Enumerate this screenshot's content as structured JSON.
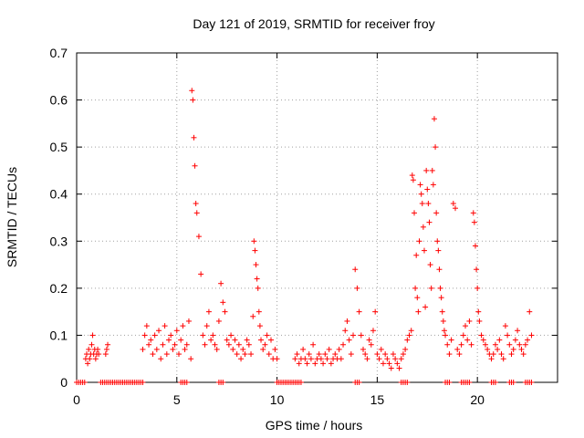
{
  "chart_data": {
    "type": "scatter",
    "title": "Day 121 of 2019, SRMTID for receiver froy",
    "xlabel": "GPS time / hours",
    "ylabel": "SRMTID / TECUs",
    "xlim": [
      0,
      24
    ],
    "ylim": [
      0,
      0.7
    ],
    "xticks": [
      0,
      5,
      10,
      15,
      20
    ],
    "yticks": [
      0,
      0.1,
      0.2,
      0.3,
      0.4,
      0.5,
      0.6,
      0.7
    ],
    "grid": true,
    "marker": "+",
    "color": "#ff0000",
    "series": [
      {
        "name": "SRMTID",
        "x": [
          0.45,
          0.5,
          0.55,
          0.6,
          0.65,
          0.7,
          0.75,
          0.8,
          0.85,
          0.9,
          0.95,
          1.0,
          1.05,
          1.1,
          1.45,
          1.5,
          1.55,
          3.3,
          3.4,
          3.5,
          3.6,
          3.7,
          3.8,
          3.9,
          4.0,
          4.1,
          4.2,
          4.3,
          4.4,
          4.5,
          4.6,
          4.7,
          4.8,
          4.9,
          5.0,
          5.1,
          5.2,
          5.3,
          5.4,
          5.5,
          5.6,
          5.7,
          5.75,
          5.8,
          5.85,
          5.9,
          5.95,
          6.0,
          6.1,
          6.2,
          6.3,
          6.4,
          6.5,
          6.6,
          6.7,
          6.8,
          6.9,
          7.0,
          7.1,
          7.2,
          7.3,
          7.4,
          7.5,
          7.6,
          7.7,
          7.8,
          7.9,
          8.0,
          8.1,
          8.2,
          8.3,
          8.4,
          8.5,
          8.6,
          8.7,
          8.8,
          8.85,
          8.9,
          8.95,
          9.0,
          9.05,
          9.1,
          9.15,
          9.2,
          9.3,
          9.4,
          9.5,
          9.6,
          9.7,
          9.8,
          9.9,
          10.0,
          10.9,
          11.0,
          11.1,
          11.2,
          11.3,
          11.4,
          11.5,
          11.6,
          11.7,
          11.8,
          11.9,
          12.0,
          12.1,
          12.2,
          12.3,
          12.4,
          12.5,
          12.6,
          12.7,
          12.8,
          12.9,
          13.0,
          13.1,
          13.2,
          13.3,
          13.4,
          13.5,
          13.6,
          13.7,
          13.8,
          13.9,
          14.0,
          14.1,
          14.2,
          14.3,
          14.4,
          14.5,
          14.6,
          14.7,
          14.8,
          14.9,
          15.0,
          15.1,
          15.2,
          15.3,
          15.4,
          15.5,
          15.6,
          15.7,
          15.8,
          15.9,
          16.0,
          16.1,
          16.2,
          16.3,
          16.4,
          16.5,
          16.6,
          16.7,
          16.75,
          16.8,
          16.85,
          16.9,
          16.95,
          17.0,
          17.05,
          17.1,
          17.15,
          17.2,
          17.25,
          17.3,
          17.35,
          17.4,
          17.45,
          17.5,
          17.55,
          17.6,
          17.65,
          17.7,
          17.75,
          17.8,
          17.85,
          17.9,
          17.95,
          18.0,
          18.05,
          18.1,
          18.15,
          18.2,
          18.25,
          18.3,
          18.35,
          18.4,
          18.5,
          18.6,
          18.7,
          18.8,
          18.9,
          19.0,
          19.1,
          19.2,
          19.3,
          19.4,
          19.5,
          19.6,
          19.7,
          19.8,
          19.85,
          19.9,
          19.95,
          20.0,
          20.05,
          20.1,
          20.2,
          20.3,
          20.4,
          20.5,
          20.6,
          20.7,
          20.8,
          20.9,
          21.0,
          21.1,
          21.2,
          21.3,
          21.4,
          21.5,
          21.6,
          21.7,
          21.8,
          21.9,
          22.0,
          22.1,
          22.2,
          22.3,
          22.4,
          22.5,
          22.6,
          22.7
        ],
        "y": [
          0.05,
          0.06,
          0.04,
          0.07,
          0.05,
          0.06,
          0.08,
          0.1,
          0.06,
          0.07,
          0.05,
          0.06,
          0.07,
          0.06,
          0.06,
          0.07,
          0.08,
          0.07,
          0.1,
          0.12,
          0.08,
          0.09,
          0.06,
          0.1,
          0.07,
          0.11,
          0.05,
          0.08,
          0.12,
          0.06,
          0.09,
          0.1,
          0.07,
          0.08,
          0.11,
          0.06,
          0.09,
          0.12,
          0.07,
          0.08,
          0.13,
          0.05,
          0.62,
          0.6,
          0.52,
          0.46,
          0.38,
          0.36,
          0.31,
          0.23,
          0.1,
          0.08,
          0.12,
          0.15,
          0.09,
          0.1,
          0.08,
          0.07,
          0.13,
          0.21,
          0.17,
          0.15,
          0.09,
          0.08,
          0.1,
          0.07,
          0.09,
          0.06,
          0.08,
          0.05,
          0.07,
          0.06,
          0.09,
          0.08,
          0.06,
          0.14,
          0.3,
          0.28,
          0.25,
          0.22,
          0.2,
          0.15,
          0.12,
          0.09,
          0.07,
          0.08,
          0.1,
          0.06,
          0.09,
          0.05,
          0.07,
          0.05,
          0.05,
          0.06,
          0.04,
          0.05,
          0.07,
          0.05,
          0.04,
          0.06,
          0.05,
          0.08,
          0.04,
          0.05,
          0.06,
          0.05,
          0.04,
          0.06,
          0.05,
          0.07,
          0.04,
          0.05,
          0.06,
          0.05,
          0.07,
          0.05,
          0.08,
          0.11,
          0.13,
          0.09,
          0.06,
          0.1,
          0.24,
          0.2,
          0.15,
          0.1,
          0.07,
          0.06,
          0.05,
          0.09,
          0.08,
          0.11,
          0.15,
          0.06,
          0.05,
          0.07,
          0.04,
          0.06,
          0.05,
          0.04,
          0.03,
          0.06,
          0.05,
          0.04,
          0.03,
          0.05,
          0.06,
          0.07,
          0.09,
          0.1,
          0.11,
          0.44,
          0.43,
          0.36,
          0.2,
          0.27,
          0.18,
          0.15,
          0.3,
          0.42,
          0.4,
          0.38,
          0.33,
          0.28,
          0.16,
          0.45,
          0.41,
          0.38,
          0.34,
          0.25,
          0.2,
          0.45,
          0.42,
          0.56,
          0.5,
          0.36,
          0.3,
          0.28,
          0.24,
          0.2,
          0.18,
          0.15,
          0.13,
          0.11,
          0.1,
          0.08,
          0.06,
          0.09,
          0.38,
          0.37,
          0.07,
          0.06,
          0.08,
          0.1,
          0.12,
          0.09,
          0.13,
          0.08,
          0.36,
          0.34,
          0.29,
          0.24,
          0.2,
          0.15,
          0.13,
          0.1,
          0.09,
          0.08,
          0.07,
          0.06,
          0.05,
          0.06,
          0.08,
          0.07,
          0.09,
          0.06,
          0.05,
          0.12,
          0.1,
          0.08,
          0.06,
          0.07,
          0.09,
          0.11,
          0.08,
          0.07,
          0.06,
          0.08,
          0.09,
          0.15,
          0.1
        ]
      }
    ],
    "zero_runs": [
      [
        0.0,
        0.4
      ],
      [
        1.2,
        3.3
      ],
      [
        5.2,
        5.5
      ],
      [
        7.1,
        7.3
      ],
      [
        10.0,
        11.2
      ],
      [
        13.9,
        14.1
      ],
      [
        16.2,
        16.5
      ],
      [
        18.4,
        18.6
      ],
      [
        19.2,
        19.6
      ],
      [
        20.7,
        20.9
      ],
      [
        21.6,
        21.8
      ],
      [
        22.4,
        22.7
      ]
    ]
  }
}
